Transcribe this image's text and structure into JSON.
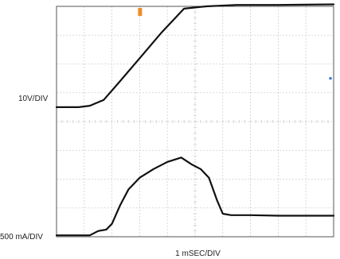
{
  "colors": {
    "background": "#ffffff",
    "grid": "#cfcfcf",
    "frame": "#555555",
    "trace": "#111111",
    "trigger_marker": "#f08a28",
    "blue_marker": "#4a7bd1"
  },
  "chart_data": {
    "type": "line",
    "title": "",
    "xlabel": "1 mSEC/DIV",
    "channel_labels": {
      "top": "10V/DIV",
      "bottom": "500 mA/DIV"
    },
    "grid": true,
    "divisions": {
      "x": 10,
      "y": 8
    },
    "xlim": [
      0,
      10
    ],
    "ylim": [
      0,
      8
    ],
    "series": [
      {
        "x": [
          0,
          0.8,
          1.2,
          1.7,
          2.2,
          3.0,
          3.8,
          4.6,
          5.4,
          6.5,
          8.0,
          10.0
        ],
        "y": [
          4.5,
          4.5,
          4.55,
          4.75,
          5.3,
          6.2,
          7.1,
          7.92,
          8.0,
          8.05,
          8.05,
          8.07
        ]
      },
      {
        "x": [
          0,
          1.2,
          1.5,
          1.8,
          2.0,
          2.3,
          2.6,
          3.0,
          3.5,
          4.0,
          4.5,
          4.9,
          5.2,
          5.5,
          5.8,
          6.0,
          6.3,
          6.6,
          7.0,
          8.0,
          10.0
        ],
        "y": [
          0.05,
          0.05,
          0.2,
          0.25,
          0.45,
          1.1,
          1.65,
          2.05,
          2.35,
          2.6,
          2.75,
          2.5,
          2.35,
          2.05,
          1.25,
          0.8,
          0.75,
          0.75,
          0.75,
          0.73,
          0.73
        ]
      }
    ]
  }
}
